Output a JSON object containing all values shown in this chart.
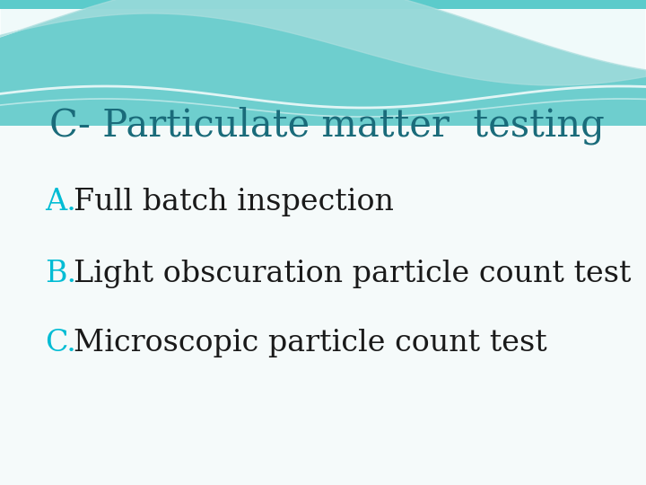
{
  "title": "C- Particulate matter  testing",
  "title_color": "#1a6b7a",
  "title_fontsize": 30,
  "items": [
    {
      "letter": "A.",
      "text": "Full batch inspection"
    },
    {
      "letter": "B.",
      "text": "Light obscuration particle count test"
    },
    {
      "letter": "C.",
      "text": "Microscopic particle count test"
    }
  ],
  "letter_color": "#00bcd4",
  "text_color": "#1a1a1a",
  "letter_fontsize": 24,
  "text_fontsize": 24,
  "bg_color": "#f5fafa",
  "teal_bg": "#6ecece",
  "wave_white": "#ffffff",
  "wave_light": "#aadede"
}
